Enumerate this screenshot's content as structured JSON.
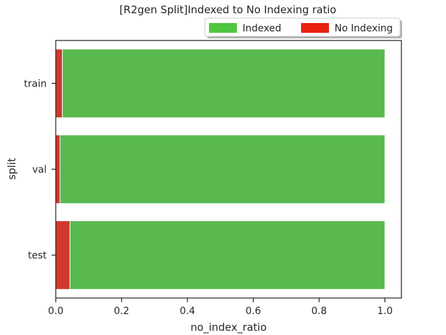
{
  "chart_data": {
    "type": "bar",
    "orientation": "horizontal",
    "stacked": true,
    "title": "[R2gen Split]Indexed to No Indexing ratio",
    "xlabel": "no_index_ratio",
    "ylabel": "split",
    "xlim": [
      0.0,
      1.05
    ],
    "xticks": [
      "0.0",
      "0.2",
      "0.4",
      "0.6",
      "0.8",
      "1.0"
    ],
    "categories": [
      "train",
      "val",
      "test"
    ],
    "series": [
      {
        "name": "Indexed",
        "values": [
          1.0,
          1.0,
          1.0
        ],
        "color": "#59b94f"
      },
      {
        "name": "No Indexing",
        "values": [
          0.02,
          0.013,
          0.043
        ],
        "color": "#d0392c"
      }
    ],
    "legend": {
      "placement": "top-right",
      "entries": [
        {
          "label": "Indexed",
          "color": "#4ec63f"
        },
        {
          "label": "No Indexing",
          "color": "#e8220f"
        }
      ]
    },
    "grid": false
  }
}
